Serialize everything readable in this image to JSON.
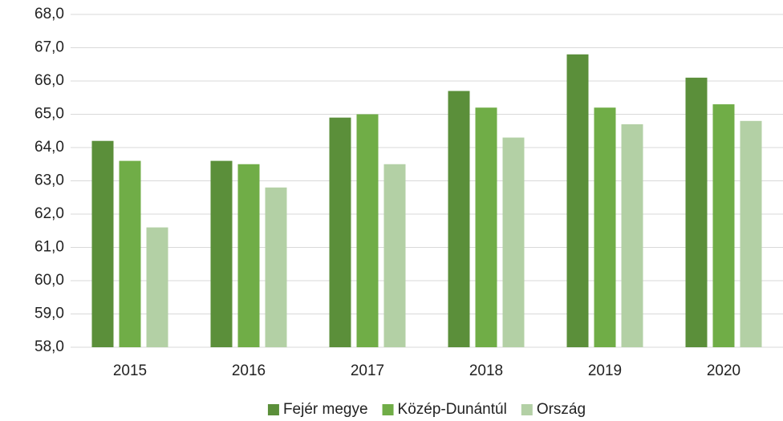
{
  "chart_data": {
    "type": "bar",
    "categories": [
      "2015",
      "2016",
      "2017",
      "2018",
      "2019",
      "2020"
    ],
    "series": [
      {
        "name": "Fejér megye",
        "color": "#5b8f3a",
        "values": [
          64.2,
          63.6,
          64.9,
          65.7,
          66.8,
          66.1
        ]
      },
      {
        "name": "Közép-Dunántúl",
        "color": "#70ad47",
        "values": [
          63.6,
          63.5,
          65.0,
          65.2,
          65.2,
          65.3
        ]
      },
      {
        "name": "Ország",
        "color": "#b3d0a5",
        "values": [
          61.6,
          62.8,
          63.5,
          64.3,
          64.7,
          64.8
        ]
      }
    ],
    "ylim": [
      58,
      68
    ],
    "yticks": [
      {
        "value": 58,
        "label": "58,0"
      },
      {
        "value": 59,
        "label": "59,0"
      },
      {
        "value": 60,
        "label": "60,0"
      },
      {
        "value": 61,
        "label": "61,0"
      },
      {
        "value": 62,
        "label": "62,0"
      },
      {
        "value": 63,
        "label": "63,0"
      },
      {
        "value": 64,
        "label": "64,0"
      },
      {
        "value": 65,
        "label": "65,0"
      },
      {
        "value": 66,
        "label": "66,0"
      },
      {
        "value": 67,
        "label": "67,0"
      },
      {
        "value": 68,
        "label": "68,0"
      }
    ],
    "grid": true,
    "legend": "bottom"
  }
}
